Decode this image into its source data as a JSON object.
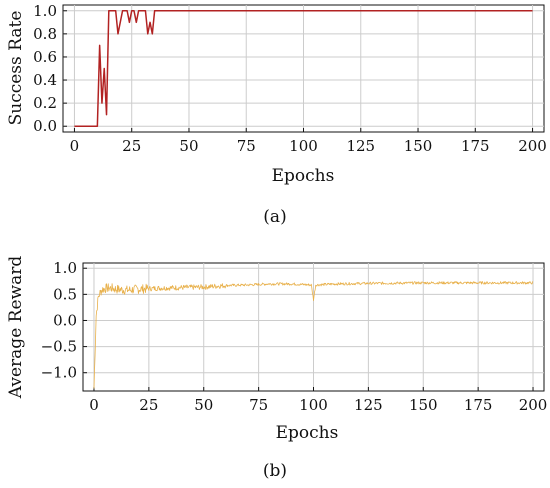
{
  "chart_data": [
    {
      "type": "line",
      "panel_label": "(a)",
      "xlabel": "Epochs",
      "ylabel": "Success Rate",
      "xlim": [
        -5,
        205
      ],
      "ylim": [
        -0.05,
        1.05
      ],
      "xticks": [
        0,
        25,
        50,
        75,
        100,
        125,
        150,
        175,
        200
      ],
      "yticks": [
        0.0,
        0.2,
        0.4,
        0.6,
        0.8,
        1.0
      ],
      "ytick_labels": [
        "0.0",
        "0.2",
        "0.4",
        "0.6",
        "0.8",
        "1.0"
      ],
      "grid": true,
      "series": [
        {
          "color": "#b22222",
          "x": [
            0,
            10,
            11,
            12,
            13,
            14,
            15,
            16,
            17,
            18,
            19,
            20,
            21,
            22,
            23,
            24,
            25,
            26,
            27,
            28,
            29,
            30,
            31,
            32,
            33,
            34,
            35,
            36,
            40,
            60,
            100,
            150,
            200
          ],
          "y": [
            0.0,
            0.0,
            0.7,
            0.2,
            0.5,
            0.1,
            1.0,
            1.0,
            1.0,
            1.0,
            0.8,
            0.9,
            1.0,
            1.0,
            1.0,
            0.9,
            1.0,
            1.0,
            0.9,
            1.0,
            1.0,
            1.0,
            1.0,
            0.8,
            0.9,
            0.8,
            1.0,
            1.0,
            1.0,
            1.0,
            1.0,
            1.0,
            1.0
          ]
        }
      ]
    },
    {
      "type": "line",
      "panel_label": "(b)",
      "xlabel": "Epochs",
      "ylabel": "Average Reward",
      "xlim": [
        -5,
        205
      ],
      "ylim": [
        -1.35,
        1.1
      ],
      "xticks": [
        0,
        25,
        50,
        75,
        100,
        125,
        150,
        175,
        200
      ],
      "yticks": [
        -1.0,
        -0.5,
        0.0,
        0.5,
        1.0
      ],
      "ytick_labels": [
        "−1.0",
        "−0.5",
        "0.0",
        "0.5",
        "1.0"
      ],
      "grid": true,
      "series": [
        {
          "color": "#e8b04a",
          "noisy": true,
          "x": [
            0,
            0.5,
            1,
            2,
            3,
            4,
            6,
            8,
            10,
            15,
            20,
            30,
            40,
            50,
            60,
            70,
            80,
            90,
            99,
            100,
            101,
            110,
            125,
            150,
            175,
            200
          ],
          "y": [
            -1.3,
            -0.6,
            0.1,
            0.45,
            0.55,
            0.6,
            0.62,
            0.62,
            0.6,
            0.58,
            0.6,
            0.62,
            0.63,
            0.64,
            0.67,
            0.68,
            0.7,
            0.7,
            0.68,
            0.4,
            0.68,
            0.7,
            0.71,
            0.72,
            0.72,
            0.72
          ]
        }
      ]
    }
  ]
}
